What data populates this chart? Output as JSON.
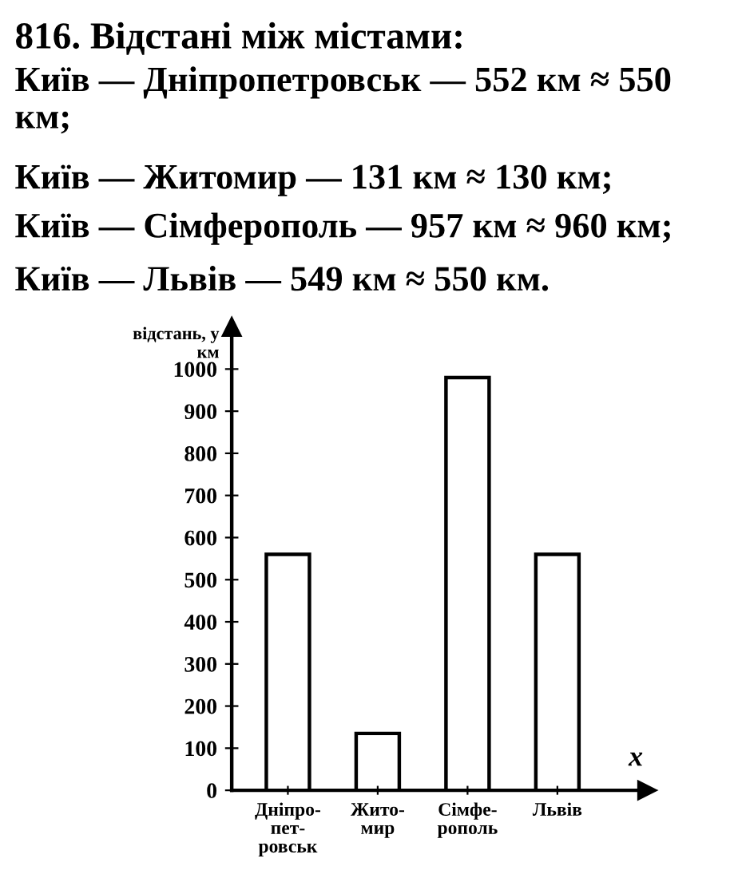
{
  "chart_data": {
    "type": "bar",
    "title": "816. Відстані між містами:",
    "annotations": [
      "Київ — Дніпропетровськ — 552 км ≈ 550 км;",
      "Київ — Житомир — 131 км ≈ 130 км;",
      "Київ — Сімферополь — 957 км ≈ 960 км;",
      "Київ — Львів — 549 км ≈ 550 км."
    ],
    "categories": [
      "Дніпро-\nпет-\nровськ",
      "Жито-\nмир",
      "Сімфе-\nрополь",
      "Львів"
    ],
    "values": [
      560,
      135,
      980,
      560
    ],
    "color": "#ffffff",
    "ylabel": "відстань, y\nкм",
    "xlabel": "x",
    "ylim": [
      0,
      1100
    ],
    "yticks": [
      {
        "value": 0,
        "label": "0"
      },
      100,
      200,
      300,
      400,
      500,
      600,
      700,
      800,
      900,
      1000
    ],
    "grid": false,
    "legend": false
  }
}
